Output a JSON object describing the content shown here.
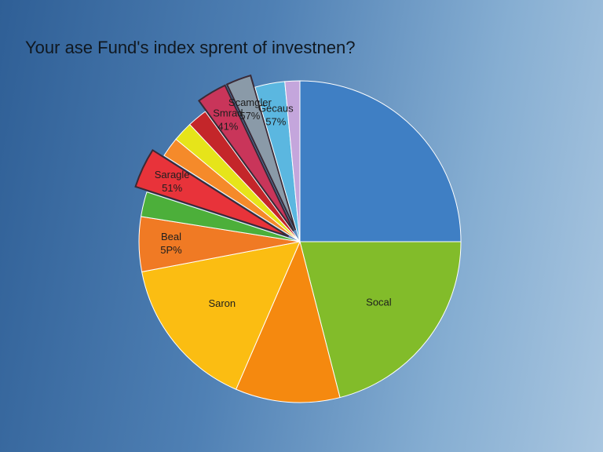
{
  "chart_data": {
    "type": "pie",
    "title": "Your ase Fund's index sprent of investnen?",
    "categories": [
      "",
      "Socal",
      "",
      "Saron",
      "Beal",
      "",
      "Saragle",
      "",
      "",
      "",
      "Smrad",
      "Scamgler",
      "Gecaus",
      ""
    ],
    "slice_notes": [
      null,
      null,
      null,
      null,
      "5P%",
      null,
      "51%",
      null,
      null,
      null,
      "41%",
      "57%",
      "57%",
      null
    ],
    "values": [
      25,
      21,
      10.5,
      15.5,
      5.5,
      2.5,
      4,
      2,
      2,
      2,
      3,
      2.5,
      3,
      1.5
    ],
    "colors": [
      "#3f7fc4",
      "#82bc2a",
      "#f5890f",
      "#fbbd12",
      "#f07a24",
      "#4caf3a",
      "#e8333a",
      "#f58a2a",
      "#e6e41a",
      "#c4262a",
      "#c9355a",
      "#8a9aa8",
      "#5bb7e0",
      "#c4a6dc"
    ],
    "exploded": [
      false,
      false,
      false,
      false,
      false,
      false,
      true,
      false,
      false,
      false,
      true,
      true,
      false,
      false
    ]
  }
}
